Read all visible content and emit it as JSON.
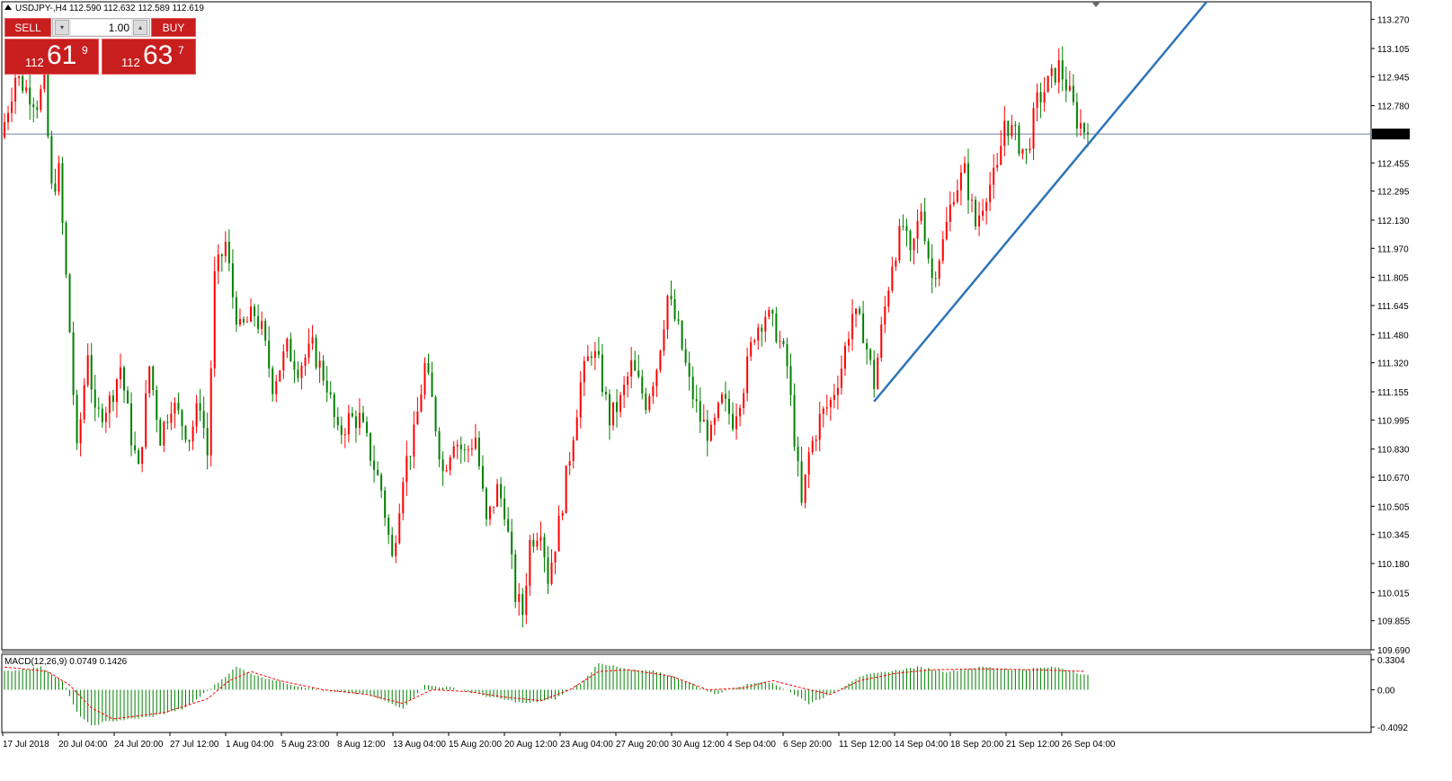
{
  "header": {
    "symbol_label": "USDJPY-,H4",
    "ohlc_text": "112.590 112.632 112.589 112.619"
  },
  "trade_panel": {
    "sell_label": "SELL",
    "buy_label": "BUY",
    "lot_value": "1.00",
    "spin_down": "▾",
    "spin_up": "▴",
    "sell_small": "112",
    "sell_big": "61",
    "sell_sup": "9",
    "buy_small": "112",
    "buy_big": "63",
    "buy_sup": "7"
  },
  "colors": {
    "bull": "#ff0000",
    "bear": "#008000",
    "trendline": "#2e75b6",
    "price_line": "#6e7fa8",
    "macd_hist": "#008000",
    "macd_signal": "#ff0000",
    "grid_frame": "#000000"
  },
  "chart_data": [
    {
      "type": "candlestick",
      "title": "USDJPY-,H4",
      "current_price": 112.619,
      "current_price_label": "112.619",
      "ylim": [
        109.69,
        113.37
      ],
      "y_ticks": [
        113.27,
        113.105,
        112.945,
        112.78,
        112.619,
        112.455,
        112.295,
        112.13,
        111.97,
        111.805,
        111.645,
        111.48,
        111.32,
        111.155,
        110.995,
        110.83,
        110.67,
        110.505,
        110.345,
        110.18,
        110.015,
        109.855,
        109.69
      ],
      "y_tick_labels": [
        "113.270",
        "113.105",
        "112.945",
        "112.780",
        "112.619",
        "112.455",
        "112.295",
        "112.130",
        "111.970",
        "111.805",
        "111.645",
        "111.480",
        "111.320",
        "111.155",
        "110.995",
        "110.830",
        "110.670",
        "110.505",
        "110.345",
        "110.180",
        "110.015",
        "109.855",
        "109.690"
      ],
      "x_tick_labels": [
        "17 Jul 2018",
        "20 Jul 04:00",
        "24 Jul 20:00",
        "27 Jul 12:00",
        "1 Aug 04:00",
        "5 Aug 23:00",
        "8 Aug 12:00",
        "13 Aug 04:00",
        "15 Aug 20:00",
        "20 Aug 12:00",
        "23 Aug 04:00",
        "27 Aug 20:00",
        "30 Aug 12:00",
        "4 Sep 04:00",
        "6 Sep 20:00",
        "11 Sep 12:00",
        "14 Sep 04:00",
        "18 Sep 20:00",
        "21 Sep 12:00",
        "26 Sep 04:00"
      ],
      "close_path_points": [
        [
          0,
          112.6
        ],
        [
          4,
          112.95
        ],
        [
          10,
          112.8
        ],
        [
          12,
          112.9
        ],
        [
          14,
          112.3
        ],
        [
          16,
          112.4
        ],
        [
          19,
          111.5
        ],
        [
          21,
          110.8
        ],
        [
          24,
          111.4
        ],
        [
          26,
          111.0
        ],
        [
          30,
          111.1
        ],
        [
          33,
          111.3
        ],
        [
          36,
          110.9
        ],
        [
          38,
          110.7
        ],
        [
          41,
          111.3
        ],
        [
          44,
          110.9
        ],
        [
          47,
          111.1
        ],
        [
          52,
          110.9
        ],
        [
          55,
          111.1
        ],
        [
          57,
          110.8
        ],
        [
          59,
          111.8
        ],
        [
          62,
          112.0
        ],
        [
          64,
          111.7
        ],
        [
          66,
          111.5
        ],
        [
          70,
          111.6
        ],
        [
          72,
          111.5
        ],
        [
          75,
          111.2
        ],
        [
          79,
          111.4
        ],
        [
          82,
          111.3
        ],
        [
          86,
          111.4
        ],
        [
          90,
          111.2
        ],
        [
          93,
          110.9
        ],
        [
          96,
          111.0
        ],
        [
          99,
          111.0
        ],
        [
          102,
          110.8
        ],
        [
          105,
          110.6
        ],
        [
          108,
          110.2
        ],
        [
          111,
          110.7
        ],
        [
          114,
          110.9
        ],
        [
          117,
          111.3
        ],
        [
          119,
          111.1
        ],
        [
          122,
          110.7
        ],
        [
          125,
          110.9
        ],
        [
          128,
          110.8
        ],
        [
          131,
          110.9
        ],
        [
          134,
          110.4
        ],
        [
          137,
          110.6
        ],
        [
          139,
          110.5
        ],
        [
          142,
          110.0
        ],
        [
          144,
          109.9
        ],
        [
          146,
          110.3
        ],
        [
          149,
          110.4
        ],
        [
          151,
          110.1
        ],
        [
          154,
          110.4
        ],
        [
          157,
          110.8
        ],
        [
          160,
          111.2
        ],
        [
          163,
          111.4
        ],
        [
          165,
          111.3
        ],
        [
          168,
          111.0
        ],
        [
          171,
          111.1
        ],
        [
          174,
          111.3
        ],
        [
          178,
          111.1
        ],
        [
          181,
          111.3
        ],
        [
          184,
          111.7
        ],
        [
          187,
          111.5
        ],
        [
          190,
          111.2
        ],
        [
          193,
          111.0
        ],
        [
          196,
          110.9
        ],
        [
          199,
          111.1
        ],
        [
          202,
          111.0
        ],
        [
          205,
          111.2
        ],
        [
          208,
          111.5
        ],
        [
          211,
          111.6
        ],
        [
          214,
          111.5
        ],
        [
          217,
          111.3
        ],
        [
          219,
          110.9
        ],
        [
          221,
          110.5
        ],
        [
          223,
          110.8
        ],
        [
          226,
          111.0
        ],
        [
          229,
          111.1
        ],
        [
          232,
          111.3
        ],
        [
          235,
          111.6
        ],
        [
          238,
          111.5
        ],
        [
          241,
          111.2
        ],
        [
          243,
          111.5
        ],
        [
          246,
          111.9
        ],
        [
          249,
          112.1
        ],
        [
          251,
          111.9
        ],
        [
          254,
          112.2
        ],
        [
          257,
          111.8
        ],
        [
          260,
          112.0
        ],
        [
          263,
          112.3
        ],
        [
          266,
          112.4
        ],
        [
          269,
          112.1
        ],
        [
          272,
          112.3
        ],
        [
          275,
          112.4
        ],
        [
          277,
          112.7
        ],
        [
          280,
          112.6
        ],
        [
          283,
          112.5
        ],
        [
          286,
          112.8
        ],
        [
          289,
          112.9
        ],
        [
          292,
          113.0
        ],
        [
          294,
          112.9
        ],
        [
          297,
          112.7
        ],
        [
          300,
          112.62
        ]
      ],
      "n_candles": 300,
      "trendline": {
        "from": [
          240,
          111.1
        ],
        "to": [
          333,
          113.4
        ]
      }
    },
    {
      "type": "histogram",
      "title": "MACD(12,26,9) 0.0749 0.1426",
      "ylim": [
        -0.4092,
        0.3304
      ],
      "y_ticks": [
        0.3304,
        0.0,
        -0.4092
      ],
      "y_tick_labels": [
        "0.3304",
        "0.00",
        "-0.4092"
      ],
      "hist_points": [
        [
          0,
          0.2
        ],
        [
          10,
          0.25
        ],
        [
          16,
          0.1
        ],
        [
          20,
          -0.25
        ],
        [
          24,
          -0.4
        ],
        [
          28,
          -0.35
        ],
        [
          40,
          -0.3
        ],
        [
          50,
          -0.2
        ],
        [
          58,
          0.05
        ],
        [
          64,
          0.25
        ],
        [
          70,
          0.15
        ],
        [
          80,
          0.05
        ],
        [
          90,
          -0.02
        ],
        [
          100,
          -0.05
        ],
        [
          110,
          -0.2
        ],
        [
          116,
          0.05
        ],
        [
          124,
          0.02
        ],
        [
          134,
          -0.08
        ],
        [
          144,
          -0.15
        ],
        [
          152,
          -0.1
        ],
        [
          160,
          0.1
        ],
        [
          164,
          0.3
        ],
        [
          172,
          0.22
        ],
        [
          180,
          0.2
        ],
        [
          188,
          0.1
        ],
        [
          196,
          -0.05
        ],
        [
          204,
          0.05
        ],
        [
          210,
          0.1
        ],
        [
          216,
          0.0
        ],
        [
          222,
          -0.15
        ],
        [
          228,
          -0.05
        ],
        [
          236,
          0.15
        ],
        [
          244,
          0.2
        ],
        [
          252,
          0.25
        ],
        [
          260,
          0.2
        ],
        [
          270,
          0.25
        ],
        [
          280,
          0.22
        ],
        [
          290,
          0.25
        ],
        [
          300,
          0.15
        ]
      ],
      "signal_points": [
        [
          0,
          0.25
        ],
        [
          12,
          0.2
        ],
        [
          18,
          0.05
        ],
        [
          24,
          -0.2
        ],
        [
          30,
          -0.32
        ],
        [
          44,
          -0.25
        ],
        [
          56,
          -0.1
        ],
        [
          62,
          0.1
        ],
        [
          68,
          0.2
        ],
        [
          76,
          0.1
        ],
        [
          88,
          0.0
        ],
        [
          100,
          -0.05
        ],
        [
          110,
          -0.15
        ],
        [
          118,
          0.0
        ],
        [
          128,
          -0.02
        ],
        [
          138,
          -0.08
        ],
        [
          148,
          -0.12
        ],
        [
          156,
          0.0
        ],
        [
          164,
          0.2
        ],
        [
          172,
          0.22
        ],
        [
          184,
          0.15
        ],
        [
          194,
          0.0
        ],
        [
          204,
          0.02
        ],
        [
          212,
          0.1
        ],
        [
          220,
          0.02
        ],
        [
          228,
          -0.05
        ],
        [
          236,
          0.1
        ],
        [
          246,
          0.18
        ],
        [
          256,
          0.22
        ],
        [
          270,
          0.23
        ],
        [
          284,
          0.22
        ],
        [
          300,
          0.2
        ]
      ]
    }
  ]
}
